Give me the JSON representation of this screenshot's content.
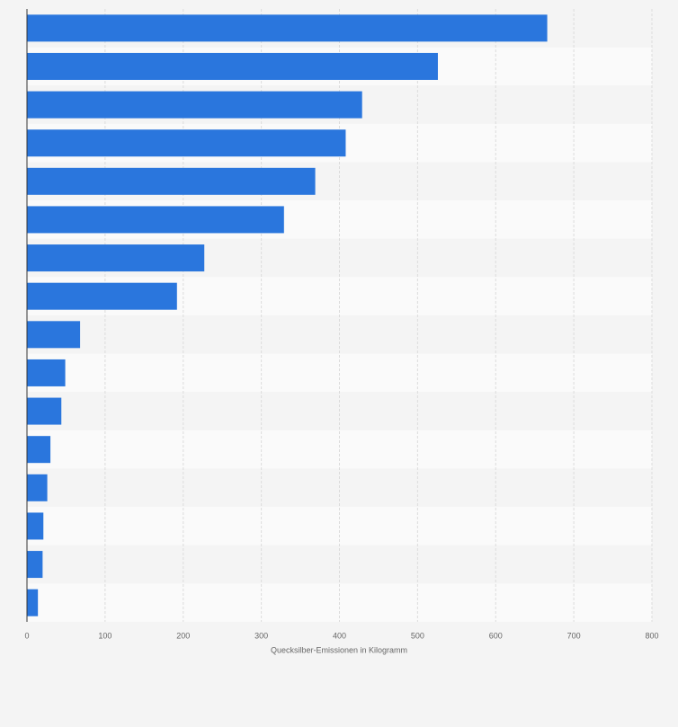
{
  "chart_data": {
    "type": "barh",
    "xlabel": "Quecksilber-Emissionen in Kilogramm",
    "categories": [
      null,
      null,
      null,
      null,
      null,
      null,
      null,
      null,
      null,
      null,
      null,
      null,
      null,
      null,
      null,
      null
    ],
    "values": [
      666,
      526,
      429,
      408,
      369,
      329,
      227,
      192,
      68,
      49,
      44,
      30,
      26,
      21,
      20,
      14
    ],
    "color": "#2a76dd",
    "xlim": [
      0,
      800
    ],
    "xticks": [
      0,
      100,
      200,
      300,
      400,
      500,
      600,
      700,
      800
    ],
    "grid": true
  }
}
